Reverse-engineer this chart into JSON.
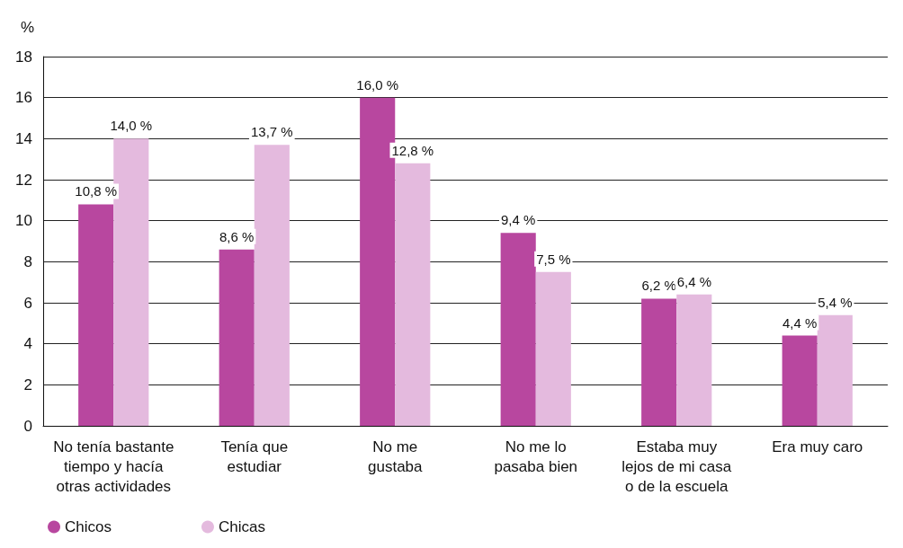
{
  "chart_data": {
    "type": "bar",
    "ylabel": "%",
    "categories": [
      "No tenía bastante\ntiempo y hacía\notras actividades",
      "Tenía que\nestudiar",
      "No me\ngustaba",
      "No me lo\npasaba bien",
      "Estaba muy\nlejos de mi casa\no de la escuela",
      "Era muy caro"
    ],
    "series": [
      {
        "name": "Chicos",
        "color": "#b8479f",
        "values": [
          10.8,
          8.6,
          16.0,
          9.4,
          6.2,
          4.4
        ],
        "value_labels": [
          "10,8 %",
          "8,6 %",
          "16,0 %",
          "9,4 %",
          "6,2 %",
          "4,4 %"
        ]
      },
      {
        "name": "Chicas",
        "color": "#e4bade",
        "values": [
          14.0,
          13.7,
          12.8,
          7.5,
          6.4,
          5.4
        ],
        "value_labels": [
          "14,0 %",
          "13,7 %",
          "12,8 %",
          "7,5 %",
          "6,4 %",
          "5,4 %"
        ]
      }
    ],
    "ylim": [
      0,
      18
    ],
    "yticks": [
      0,
      2,
      4,
      6,
      8,
      10,
      12,
      14,
      16,
      18
    ],
    "grid": "y",
    "legend": "bottom left"
  }
}
